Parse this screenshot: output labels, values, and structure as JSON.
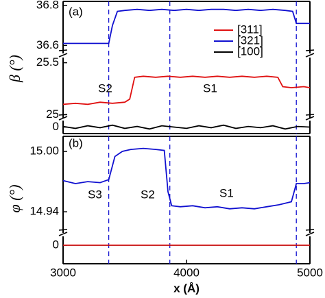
{
  "chart_data": [
    {
      "type": "line",
      "label": "(a)",
      "ylabel": "β (°)",
      "xlim": [
        3000,
        5000
      ],
      "legend": "upper right",
      "vlines": [
        3370,
        3865,
        4890
      ],
      "annotations": [
        {
          "text": "S2",
          "color": "#e01010"
        },
        {
          "text": "S1",
          "color": "#e01010"
        }
      ],
      "segments": [
        {
          "ylim": [
            36.56,
            36.82
          ],
          "yticks": [
            36.6,
            36.8
          ],
          "series": [
            {
              "name": "[321]",
              "color": "#1010d0",
              "x": [
                3000,
                3100,
                3200,
                3300,
                3370,
                3400,
                3440,
                3500,
                3600,
                3700,
                3800,
                3900,
                4000,
                4100,
                4200,
                4300,
                4400,
                4500,
                4600,
                4700,
                4800,
                4860,
                4890,
                4950,
                5000
              ],
              "values": [
                36.61,
                36.61,
                36.61,
                36.61,
                36.61,
                36.7,
                36.77,
                36.775,
                36.78,
                36.775,
                36.78,
                36.775,
                36.78,
                36.775,
                36.78,
                36.78,
                36.775,
                36.78,
                36.775,
                36.78,
                36.775,
                36.77,
                36.71,
                36.71,
                36.71
              ]
            }
          ]
        },
        {
          "ylim": [
            24.97,
            25.55
          ],
          "yticks": [
            25,
            25.5
          ],
          "series": [
            {
              "name": "[311]",
              "color": "#e01010",
              "x": [
                3000,
                3100,
                3200,
                3300,
                3400,
                3500,
                3540,
                3580,
                3650,
                3750,
                3850,
                3950,
                4050,
                4150,
                4250,
                4350,
                4450,
                4550,
                4650,
                4740,
                4780,
                4850,
                4950,
                5000
              ],
              "values": [
                25.1,
                25.11,
                25.1,
                25.12,
                25.11,
                25.12,
                25.15,
                25.36,
                25.37,
                25.36,
                25.37,
                25.36,
                25.37,
                25.36,
                25.37,
                25.36,
                25.37,
                25.36,
                25.37,
                25.36,
                25.27,
                25.26,
                25.27,
                25.26
              ]
            }
          ]
        },
        {
          "ylim": [
            -1,
            1
          ],
          "yticks": [
            0
          ],
          "series": [
            {
              "name": "[100]",
              "color": "#000000",
              "x": [
                3000,
                3100,
                3200,
                3300,
                3400,
                3500,
                3600,
                3700,
                3800,
                3900,
                4000,
                4100,
                4200,
                4300,
                4400,
                4500,
                4600,
                4700,
                4800,
                4900,
                5000
              ],
              "values": [
                0.1,
                -0.2,
                0.2,
                -0.1,
                0.3,
                -0.2,
                0.1,
                -0.3,
                0.2,
                0,
                -0.2,
                0.2,
                -0.1,
                0.3,
                -0.2,
                0.1,
                -0.1,
                0.2,
                -0.3,
                0.1,
                0
              ]
            }
          ]
        }
      ]
    },
    {
      "type": "line",
      "label": "(b)",
      "ylabel": "φ (°)",
      "xlim": [
        3000,
        5000
      ],
      "xticks": [
        3000,
        4000,
        5000
      ],
      "xlabel": "x (Å)",
      "vlines": [
        3370,
        3865,
        4890
      ],
      "annotations": [
        {
          "text": "S3",
          "color": "#1010d0"
        },
        {
          "text": "S2",
          "color": "#1010d0"
        },
        {
          "text": "S1",
          "color": "#1010d0"
        }
      ],
      "segments": [
        {
          "ylim": [
            14.919,
            15.015
          ],
          "yticks": [
            {
              "value": 15,
              "label": "15.00"
            },
            14.94
          ],
          "series": [
            {
              "color": "#1010d0",
              "x": [
                3000,
                3100,
                3200,
                3300,
                3370,
                3420,
                3480,
                3550,
                3650,
                3750,
                3820,
                3850,
                3880,
                3950,
                4050,
                4150,
                4250,
                4350,
                4450,
                4550,
                4650,
                4750,
                4850,
                4890,
                4950,
                5000
              ],
              "values": [
                14.971,
                14.968,
                14.97,
                14.969,
                14.972,
                14.995,
                15,
                15.002,
                15.003,
                15.002,
                15.001,
                14.96,
                14.946,
                14.945,
                14.946,
                14.944,
                14.945,
                14.943,
                14.944,
                14.943,
                14.945,
                14.947,
                14.95,
                14.968,
                14.968,
                14.969
              ]
            }
          ]
        },
        {
          "ylim": [
            -2.1,
            1
          ],
          "yticks": [
            0
          ],
          "series": [
            {
              "color": "#000000",
              "x": [
                3000,
                4000,
                5000
              ],
              "values": [
                0,
                0,
                0
              ]
            },
            {
              "color": "#e01010",
              "x": [
                3000,
                4000,
                5000
              ],
              "values": [
                0,
                0,
                0
              ]
            }
          ]
        }
      ]
    }
  ]
}
